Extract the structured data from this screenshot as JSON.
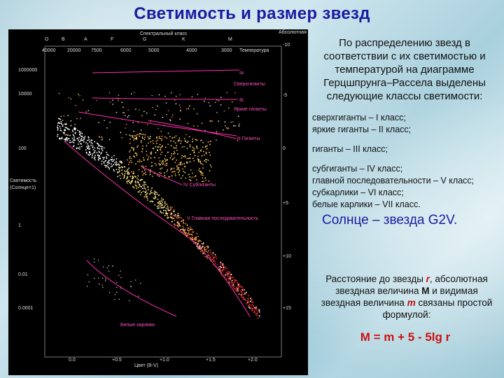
{
  "title": "Светимость и размер звезд",
  "diagram": {
    "header_left": "Спектральный класс",
    "header_right": "Абсолютная величина",
    "spectral_classes": [
      "O",
      "B",
      "A",
      "F",
      "G",
      "K",
      "M"
    ],
    "temperatures": [
      "40000",
      "20000",
      "7500",
      "6000",
      "5000",
      "4000",
      "3000"
    ],
    "temperature_label": "Температура",
    "luminosity_ticks": [
      "1000000",
      "10000",
      "100",
      "1",
      "0.01",
      "0.0001"
    ],
    "luminosity_axis_label": "Светимость (Солнце=1)",
    "magnitude_ticks": [
      "-10",
      "-5",
      "0",
      "+5",
      "+10",
      "+15"
    ],
    "color_ticks": [
      "0.0",
      "+0.5",
      "+1.0",
      "+1.5",
      "+2.0"
    ],
    "color_axis_label": "Цвет (B-V)",
    "labels": {
      "ia": "Ia",
      "supergiants": "Сверхгиганты",
      "ib": "Ib",
      "bright_giants": "Яркие гиганты",
      "giants": "III Гиганты",
      "subgiants": "IV Субгиганты",
      "main_sequence": "V Главная последовательность",
      "white_dwarfs": "Белые карлики"
    }
  },
  "text": {
    "intro": "По распределению звезд в соответствии с их светимостью и температурой на диаграмме Герцшпрунга–Рассела выделены следующие классы светимости:",
    "classes": [
      "сверхгиганты – I класс;",
      "яркие гиганты – II класс;",
      "гиганты – III класс;",
      "субгиганты  – IV класс;",
      "главной последовательности – V класс;",
      "субкарлики – VI класс;",
      "белые карлики – VII класс."
    ],
    "sun": "Солнце – звезда G2V.",
    "formula_part1": "Расстояние до звезды ",
    "formula_r": "r",
    "formula_part2": ", абсолютная звездная величина ",
    "formula_M": "M",
    "formula_part3": " и видимая звездная величина ",
    "formula_m": "m",
    "formula_part4": " связаны простой формулой:",
    "formula": "M = m + 5 - 5lg r"
  },
  "colors": {
    "title": "#1a1aa0",
    "accent_red": "#d01010",
    "class_lines": "#ff2fb0"
  }
}
